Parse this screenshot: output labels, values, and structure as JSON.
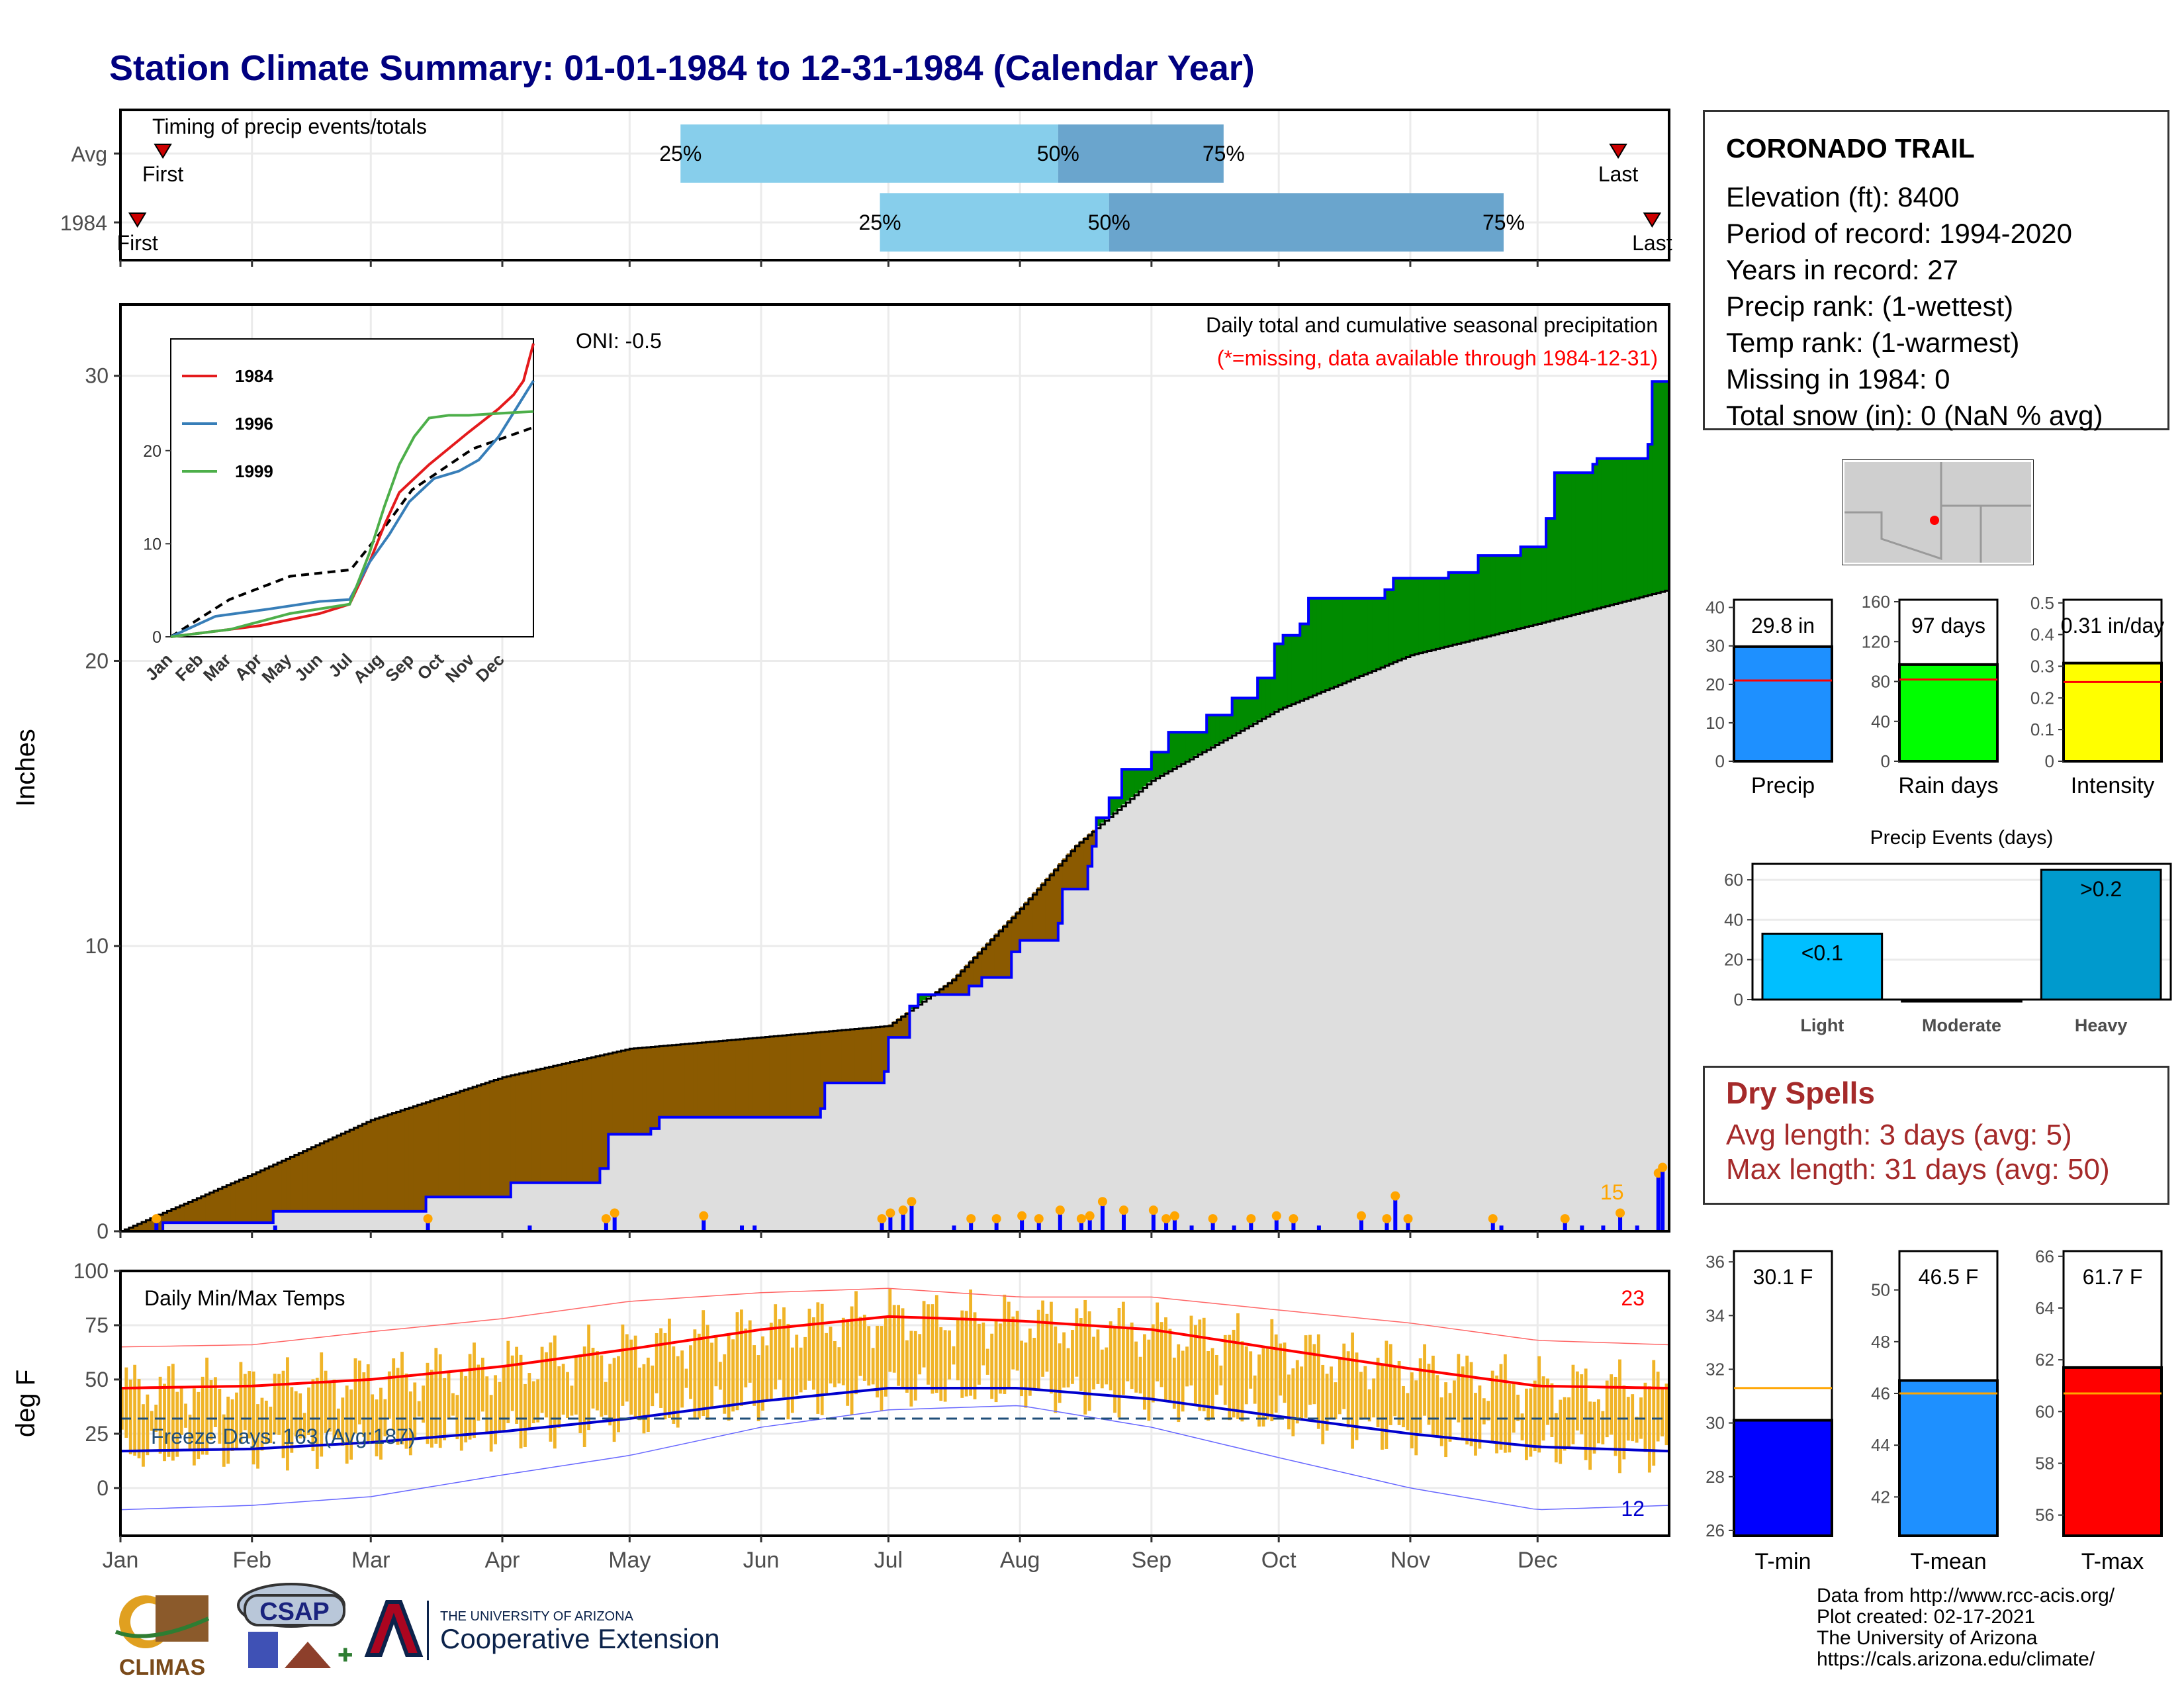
{
  "title": "Station Climate Summary: 01-01-1984 to 12-31-1984 (Calendar Year)",
  "station": {
    "name": "CORONADO TRAIL",
    "lines": [
      "Elevation (ft): 8400",
      "Period of record: 1994-2020",
      "Years in record: 27",
      "Precip rank:  (1-wettest)",
      "Temp rank:  (1-warmest)",
      "Missing in 1984: 0",
      "Total snow (in): 0 (NaN % avg)"
    ]
  },
  "dry_spells": {
    "title": "Dry Spells",
    "avg": "Avg length: 3 days (avg: 5)",
    "max": "Max length: 31 days (avg: 50)"
  },
  "credits": [
    "Data from http://www.rcc-acis.org/",
    "Plot created: 02-17-2021",
    "The University of Arizona",
    "https://cals.arizona.edu/climate/"
  ],
  "logos": {
    "climas": "CLIMAS",
    "csap": "CSAP",
    "ua_small": "THE UNIVERSITY OF ARIZONA",
    "ua_big": "Cooperative Extension"
  },
  "colors": {
    "title": "#000080",
    "deficit": "#8B5A00",
    "surplus": "#008B00",
    "normal_fill": "#DEDEDE",
    "precip_line": "#0000FF",
    "temp_bar": "#F0B428",
    "tmax": "#FF0000",
    "tmin": "#0000CC",
    "quartile_light": "#87CEEB",
    "quartile_dark": "#6AA5CD"
  },
  "chart_data": [
    {
      "id": "timing",
      "type": "bar",
      "title": "Timing of precip events/totals",
      "months": [
        "Jan",
        "Feb",
        "Mar",
        "Apr",
        "May",
        "Jun",
        "Jul",
        "Aug",
        "Sep",
        "Oct",
        "Nov",
        "Dec"
      ],
      "rows": [
        {
          "label": "Avg",
          "first": 10,
          "last": 353,
          "q25": 132,
          "q50": 221,
          "q75": 260,
          "labels": {
            "first": "First",
            "last": "Last",
            "q25": "25%",
            "q50": "50%",
            "q75": "75%"
          }
        },
        {
          "label": "1984",
          "first": 4,
          "last": 361,
          "q25": 179,
          "q50": 233,
          "q75": 326,
          "labels": {
            "first": "First",
            "last": "Last",
            "q25": "25%",
            "q50": "50%",
            "q75": "75%"
          }
        }
      ]
    },
    {
      "id": "precip",
      "type": "area",
      "ylabel": "Inches",
      "ylim": [
        0,
        32.5
      ],
      "yticks": [
        0,
        10,
        20,
        30
      ],
      "annotation_title": "Daily total and cumulative seasonal precipitation",
      "annotation_missing": "(*=missing, data available through 1984-12-31)",
      "oni": "ONI: -0.5",
      "max_day_count": "15",
      "normal_cumulative": {
        "day": [
          0,
          31,
          59,
          90,
          120,
          151,
          181,
          196,
          212,
          225,
          243,
          273,
          304,
          334,
          365
        ],
        "value": [
          0,
          2.0,
          3.9,
          5.4,
          6.4,
          6.8,
          7.2,
          8.8,
          11.3,
          13.5,
          15.8,
          18.3,
          20.2,
          21.3,
          22.5
        ]
      },
      "observed_cumulative": {
        "day": [
          0,
          9,
          10,
          35,
          36,
          71,
          72,
          90,
          92,
          113,
          115,
          125,
          127,
          159,
          165,
          166,
          180,
          181,
          186,
          188,
          200,
          203,
          210,
          212,
          221,
          222,
          228,
          229,
          230,
          233,
          236,
          243,
          247,
          256,
          262,
          268,
          272,
          274,
          278,
          280,
          298,
          300,
          313,
          320,
          330,
          336,
          338,
          347,
          348,
          360,
          361,
          365
        ],
        "value": [
          0,
          0,
          0.3,
          0.3,
          0.7,
          0.7,
          1.2,
          1.2,
          1.7,
          2.2,
          3.4,
          3.6,
          4.0,
          4.0,
          4.3,
          5.2,
          5.6,
          6.8,
          7.9,
          8.3,
          8.6,
          8.9,
          9.8,
          10.2,
          10.8,
          12.0,
          12.8,
          13.5,
          14.5,
          15.2,
          16.2,
          16.8,
          17.5,
          18.1,
          18.7,
          19.4,
          20.6,
          20.9,
          21.3,
          22.2,
          22.5,
          22.9,
          23.1,
          23.7,
          24.0,
          25.0,
          26.6,
          26.9,
          27.1,
          27.6,
          29.8,
          29.8
        ]
      },
      "daily_precip_events": {
        "day": [
          8,
          36,
          72,
          96,
          114,
          116,
          137,
          146,
          149,
          179,
          181,
          184,
          186,
          196,
          200,
          206,
          212,
          216,
          221,
          226,
          228,
          231,
          236,
          243,
          246,
          248,
          252,
          257,
          262,
          266,
          272,
          276,
          282,
          292,
          298,
          300,
          303,
          323,
          325,
          340,
          344,
          349,
          353,
          357,
          362,
          363
        ],
        "inches": [
          0.3,
          0.2,
          0.3,
          0.2,
          0.3,
          0.5,
          0.4,
          0.2,
          0.2,
          0.3,
          0.5,
          0.6,
          0.9,
          0.2,
          0.3,
          0.3,
          0.4,
          0.3,
          0.6,
          0.3,
          0.4,
          0.9,
          0.6,
          0.6,
          0.3,
          0.4,
          0.2,
          0.3,
          0.2,
          0.3,
          0.4,
          0.3,
          0.2,
          0.4,
          0.3,
          1.1,
          0.3,
          0.3,
          0.2,
          0.3,
          0.2,
          0.2,
          0.5,
          0.2,
          1.9,
          2.1
        ]
      },
      "inset": {
        "years": [
          "1984",
          "1996",
          "1999"
        ],
        "colors": [
          "#E41A1C",
          "#377EB8",
          "#4DAF4A"
        ],
        "ylim": [
          0,
          32
        ],
        "yticks": [
          0,
          10,
          20
        ],
        "months": [
          "Jan",
          "Feb",
          "Mar",
          "Apr",
          "May",
          "Jun",
          "Jul",
          "Aug",
          "Sep",
          "Oct",
          "Nov",
          "Dec"
        ],
        "curves": {
          "normal": {
            "day": [
              0,
              59,
              120,
              181,
              212,
              243,
              304,
              365
            ],
            "value": [
              0,
              4,
              6.5,
              7.2,
              11.3,
              15.8,
              20.2,
              22.5
            ]
          },
          "1984": {
            "day": [
              0,
              90,
              150,
              180,
              200,
              215,
              230,
              260,
              300,
              330,
              345,
              355,
              365
            ],
            "value": [
              0,
              1.2,
              2.5,
              3.5,
              8,
              12,
              15.5,
              18.5,
              22,
              24.5,
              26,
              27.5,
              31.5
            ]
          },
          "1996": {
            "day": [
              0,
              45,
              100,
              150,
              180,
              200,
              220,
              240,
              265,
              290,
              310,
              330,
              365
            ],
            "value": [
              0,
              2.2,
              3.0,
              3.8,
              4.0,
              8,
              11,
              14.5,
              17,
              17.8,
              19,
              21.5,
              27.5
            ]
          },
          "1999": {
            "day": [
              0,
              60,
              120,
              180,
              200,
              215,
              230,
              245,
              260,
              280,
              300,
              330,
              365
            ],
            "value": [
              0,
              0.8,
              2.5,
              3.5,
              9,
              14,
              18.5,
              21.5,
              23.5,
              23.8,
              23.8,
              24.0,
              24.2
            ]
          }
        }
      }
    },
    {
      "id": "temperature",
      "type": "bar",
      "title": "Daily Min/Max Temps",
      "ylabel": "deg F",
      "ylim": [
        -22,
        100
      ],
      "yticks": [
        0,
        25,
        50,
        75,
        100
      ],
      "freeze_label": "Freeze Days: 163 (Avg:187)",
      "freeze_line": 32,
      "max_count_label": "23",
      "min_count_label": "12",
      "months": [
        "Jan",
        "Feb",
        "Mar",
        "Apr",
        "May",
        "Jun",
        "Jul",
        "Aug",
        "Sep",
        "Oct",
        "Nov",
        "Dec"
      ],
      "normal_tmax": {
        "day": [
          0,
          31,
          59,
          90,
          120,
          151,
          181,
          212,
          243,
          273,
          304,
          334,
          365
        ],
        "value": [
          46,
          47,
          50,
          56,
          64,
          73,
          79,
          77,
          73,
          64,
          55,
          47,
          46
        ]
      },
      "normal_tmin": {
        "day": [
          0,
          31,
          59,
          90,
          120,
          151,
          181,
          212,
          243,
          273,
          304,
          334,
          365
        ],
        "value": [
          17,
          18,
          21,
          26,
          32,
          40,
          46,
          46,
          41,
          33,
          25,
          19,
          17
        ]
      },
      "record_high": {
        "day": [
          0,
          31,
          59,
          90,
          120,
          151,
          181,
          212,
          243,
          273,
          304,
          334,
          365
        ],
        "value": [
          65,
          66,
          72,
          78,
          86,
          90,
          92,
          88,
          88,
          82,
          76,
          68,
          66
        ]
      },
      "record_low": {
        "day": [
          0,
          31,
          59,
          90,
          120,
          151,
          181,
          212,
          243,
          273,
          304,
          334,
          365
        ],
        "value": [
          -10,
          -8,
          -4,
          6,
          15,
          28,
          36,
          38,
          28,
          14,
          0,
          -10,
          -8
        ]
      }
    },
    {
      "id": "summary_precip",
      "type": "bar",
      "panels": [
        {
          "label": "Precip",
          "value": 29.8,
          "display": "29.8 in",
          "avg": 21,
          "ylim": [
            0,
            42
          ],
          "yticks": [
            0,
            10,
            20,
            30,
            40
          ],
          "color": "#1E90FF"
        },
        {
          "label": "Rain days",
          "value": 97,
          "display": "97 days",
          "avg": 82,
          "ylim": [
            0,
            162
          ],
          "yticks": [
            0,
            40,
            80,
            120,
            160
          ],
          "color": "#00FF00"
        },
        {
          "label": "Intensity",
          "value": 0.31,
          "display": "0.31 in/day",
          "avg": 0.25,
          "ylim": [
            0,
            0.51
          ],
          "yticks": [
            0.0,
            0.1,
            0.2,
            0.3,
            0.4,
            0.5
          ],
          "color": "#FFFF00"
        }
      ]
    },
    {
      "id": "precip_events",
      "type": "bar",
      "title": "Precip Events (days)",
      "categories": [
        "Light",
        "Moderate",
        "Heavy"
      ],
      "values": [
        33,
        0,
        65
      ],
      "labels": [
        "<0.1",
        "",
        ">0.2"
      ],
      "ylim": [
        0,
        68
      ],
      "yticks": [
        0,
        20,
        40,
        60
      ],
      "colors": [
        "#00BFFF",
        "#1E90FF",
        "#009ACD"
      ]
    },
    {
      "id": "summary_temp",
      "type": "bar",
      "panels": [
        {
          "label": "T-min",
          "value": 30.1,
          "display": "30.1 F",
          "avg": 31.3,
          "ylim": [
            25.8,
            36.4
          ],
          "yticks": [
            26,
            28,
            30,
            32,
            34,
            36
          ],
          "color": "#0000FF"
        },
        {
          "label": "T-mean",
          "value": 46.5,
          "display": "46.5 F",
          "avg": 46.0,
          "ylim": [
            40.5,
            51.5
          ],
          "yticks": [
            42,
            44,
            46,
            48,
            50
          ],
          "color": "#1E90FF"
        },
        {
          "label": "T-max",
          "value": 61.7,
          "display": "61.7 F",
          "avg": 60.7,
          "ylim": [
            55.2,
            66.2
          ],
          "yticks": [
            56,
            58,
            60,
            62,
            64,
            66
          ],
          "color": "#FF0000"
        }
      ]
    }
  ]
}
